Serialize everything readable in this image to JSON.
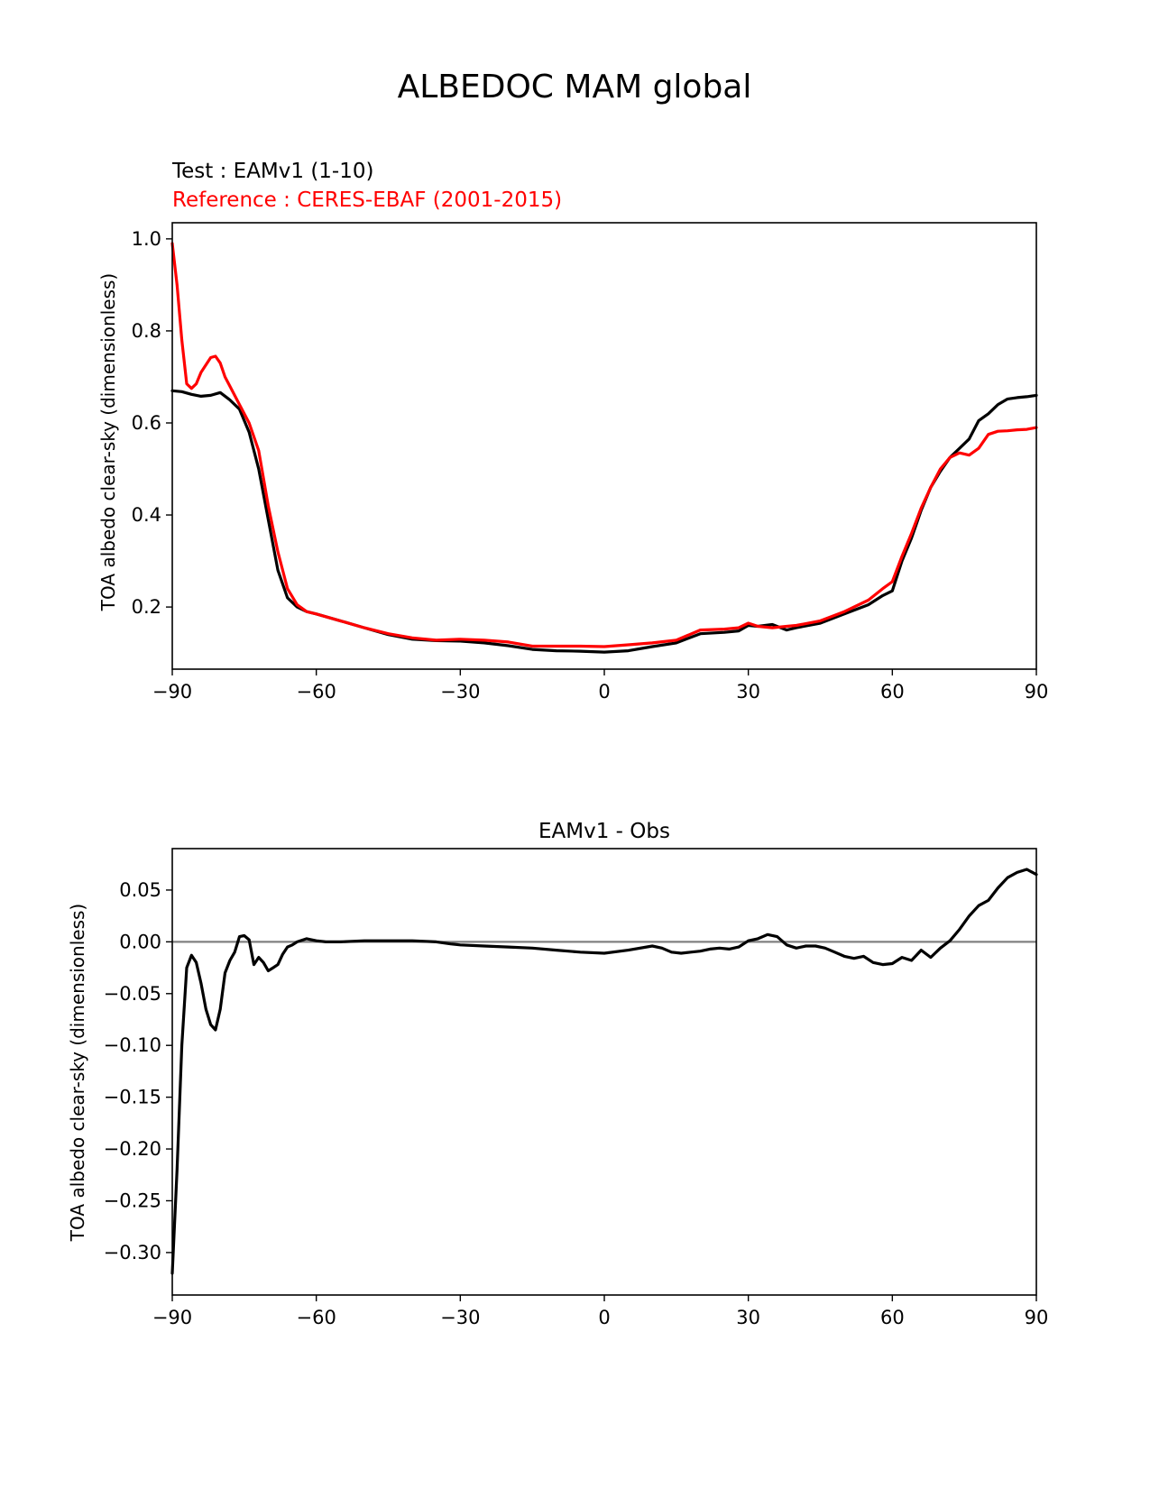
{
  "suptitle": "ALBEDOC MAM global",
  "chart_data": [
    {
      "type": "line",
      "test_label": "Test : EAMv1 (1-10)",
      "reference_label": "Reference : CERES-EBAF (2001-2015)",
      "ylabel": "TOA albedo clear-sky (dimensionless)",
      "xlabel": "",
      "xlim": [
        -90,
        90
      ],
      "ylim": [
        0.065,
        1.035
      ],
      "xticks": [
        -90,
        -60,
        -30,
        0,
        30,
        60,
        90
      ],
      "xtick_labels": [
        "−90",
        "−60",
        "−30",
        "0",
        "30",
        "60",
        "90"
      ],
      "yticks": [
        0.2,
        0.4,
        0.6,
        0.8,
        1.0
      ],
      "ytick_labels": [
        "0.2",
        "0.4",
        "0.6",
        "0.8",
        "1.0"
      ],
      "series": [
        {
          "color": "#000000",
          "x": [
            -90,
            -88,
            -86,
            -84,
            -82,
            -80,
            -78,
            -76,
            -74,
            -72,
            -70,
            -68,
            -66,
            -64,
            -62,
            -60,
            -55,
            -50,
            -45,
            -40,
            -35,
            -30,
            -25,
            -20,
            -15,
            -10,
            -5,
            0,
            5,
            10,
            15,
            20,
            25,
            28,
            30,
            32,
            35,
            38,
            40,
            45,
            50,
            55,
            58,
            60,
            62,
            64,
            66,
            68,
            70,
            72,
            74,
            76,
            78,
            80,
            82,
            84,
            86,
            88,
            90
          ],
          "y": [
            0.67,
            0.668,
            0.662,
            0.658,
            0.66,
            0.666,
            0.65,
            0.63,
            0.58,
            0.5,
            0.39,
            0.28,
            0.22,
            0.2,
            0.19,
            0.185,
            0.17,
            0.155,
            0.14,
            0.13,
            0.127,
            0.126,
            0.122,
            0.116,
            0.108,
            0.105,
            0.104,
            0.102,
            0.105,
            0.114,
            0.122,
            0.142,
            0.145,
            0.148,
            0.16,
            0.158,
            0.162,
            0.15,
            0.155,
            0.165,
            0.185,
            0.205,
            0.225,
            0.235,
            0.3,
            0.35,
            0.41,
            0.46,
            0.495,
            0.525,
            0.545,
            0.565,
            0.605,
            0.62,
            0.64,
            0.652,
            0.655,
            0.657,
            0.66
          ]
        },
        {
          "color": "#ff0000",
          "x": [
            -90,
            -89,
            -88,
            -87,
            -86,
            -85,
            -84,
            -82,
            -81,
            -80,
            -79,
            -78,
            -76,
            -74,
            -72,
            -70,
            -68,
            -66,
            -64,
            -62,
            -60,
            -55,
            -50,
            -45,
            -40,
            -35,
            -30,
            -25,
            -20,
            -15,
            -10,
            -5,
            0,
            5,
            10,
            15,
            20,
            25,
            28,
            30,
            32,
            35,
            38,
            40,
            45,
            50,
            55,
            58,
            60,
            62,
            64,
            66,
            68,
            70,
            72,
            74,
            76,
            78,
            80,
            82,
            84,
            86,
            88,
            90
          ],
          "y": [
            0.99,
            0.9,
            0.78,
            0.685,
            0.675,
            0.685,
            0.71,
            0.742,
            0.745,
            0.73,
            0.7,
            0.68,
            0.64,
            0.6,
            0.54,
            0.42,
            0.32,
            0.24,
            0.205,
            0.19,
            0.185,
            0.17,
            0.155,
            0.142,
            0.133,
            0.128,
            0.13,
            0.128,
            0.124,
            0.115,
            0.115,
            0.115,
            0.114,
            0.118,
            0.122,
            0.128,
            0.15,
            0.152,
            0.155,
            0.165,
            0.158,
            0.155,
            0.158,
            0.16,
            0.17,
            0.19,
            0.215,
            0.24,
            0.255,
            0.31,
            0.36,
            0.415,
            0.46,
            0.5,
            0.525,
            0.535,
            0.53,
            0.545,
            0.575,
            0.582,
            0.583,
            0.585,
            0.586,
            0.59
          ]
        }
      ]
    },
    {
      "type": "line",
      "title": "EAMv1 - Obs",
      "ylabel": "TOA albedo clear-sky (dimensionless)",
      "xlabel": "",
      "xlim": [
        -90,
        90
      ],
      "ylim": [
        -0.341,
        0.09
      ],
      "xticks": [
        -90,
        -60,
        -30,
        0,
        30,
        60,
        90
      ],
      "xtick_labels": [
        "−90",
        "−60",
        "−30",
        "0",
        "30",
        "60",
        "90"
      ],
      "yticks": [
        0.05,
        0.0,
        -0.05,
        -0.1,
        -0.15,
        -0.2,
        -0.25,
        -0.3
      ],
      "ytick_labels": [
        "0.05",
        "0.00",
        "−0.05",
        "−0.10",
        "−0.15",
        "−0.20",
        "−0.25",
        "−0.30"
      ],
      "zero_line": true,
      "series": [
        {
          "color": "#000000",
          "x": [
            -90,
            -89,
            -88,
            -87,
            -86,
            -85,
            -84,
            -83,
            -82,
            -81,
            -80,
            -79,
            -78,
            -77,
            -76,
            -75,
            -74,
            -73,
            -72,
            -71,
            -70,
            -69,
            -68,
            -67,
            -66,
            -65,
            -64,
            -62,
            -60,
            -58,
            -55,
            -50,
            -45,
            -40,
            -35,
            -32,
            -30,
            -25,
            -20,
            -15,
            -10,
            -5,
            0,
            5,
            10,
            12,
            14,
            16,
            18,
            20,
            22,
            24,
            26,
            28,
            30,
            32,
            34,
            36,
            38,
            40,
            42,
            44,
            46,
            48,
            50,
            52,
            54,
            56,
            58,
            60,
            62,
            64,
            66,
            68,
            70,
            72,
            74,
            76,
            78,
            80,
            82,
            84,
            86,
            88,
            90
          ],
          "y": [
            -0.32,
            -0.22,
            -0.1,
            -0.025,
            -0.013,
            -0.02,
            -0.04,
            -0.065,
            -0.08,
            -0.085,
            -0.065,
            -0.03,
            -0.018,
            -0.01,
            0.005,
            0.006,
            0.002,
            -0.022,
            -0.015,
            -0.02,
            -0.028,
            -0.025,
            -0.022,
            -0.012,
            -0.005,
            -0.003,
            0.0,
            0.003,
            0.001,
            0.0,
            0.0,
            0.001,
            0.001,
            0.001,
            0.0,
            -0.002,
            -0.003,
            -0.004,
            -0.005,
            -0.006,
            -0.008,
            -0.01,
            -0.011,
            -0.008,
            -0.004,
            -0.006,
            -0.01,
            -0.011,
            -0.01,
            -0.009,
            -0.007,
            -0.006,
            -0.007,
            -0.005,
            0.001,
            0.003,
            0.007,
            0.005,
            -0.003,
            -0.006,
            -0.004,
            -0.004,
            -0.006,
            -0.01,
            -0.014,
            -0.016,
            -0.014,
            -0.02,
            -0.022,
            -0.021,
            -0.015,
            -0.018,
            -0.008,
            -0.015,
            -0.006,
            0.001,
            0.012,
            0.025,
            0.035,
            0.04,
            0.052,
            0.062,
            0.067,
            0.07,
            0.065
          ]
        }
      ]
    }
  ]
}
